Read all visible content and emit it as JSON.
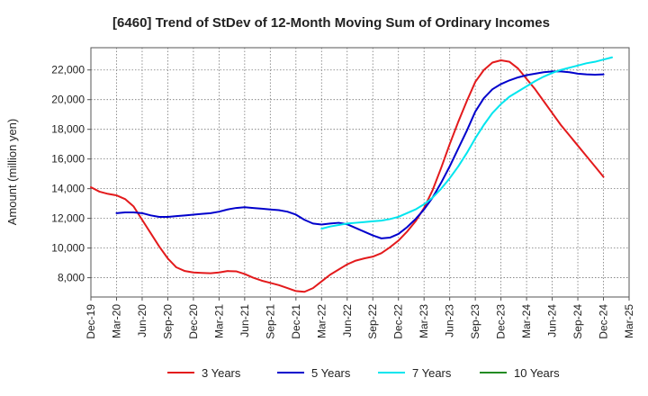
{
  "chart_data": {
    "type": "line",
    "title": "[6460]  Trend of StDev of 12-Month Moving Sum of Ordinary Incomes",
    "xlabel": "",
    "ylabel": "Amount (million yen)",
    "ylim": [
      6700,
      23500
    ],
    "yticks": [
      8000,
      10000,
      12000,
      14000,
      16000,
      18000,
      20000,
      22000
    ],
    "ytick_labels": [
      "8,000",
      "10,000",
      "12,000",
      "14,000",
      "16,000",
      "18,000",
      "20,000",
      "22,000"
    ],
    "x_categories": [
      "Dec-19",
      "Mar-20",
      "Jun-20",
      "Sep-20",
      "Dec-20",
      "Mar-21",
      "Jun-21",
      "Sep-21",
      "Dec-21",
      "Mar-22",
      "Jun-22",
      "Sep-22",
      "Dec-22",
      "Mar-23",
      "Jun-23",
      "Sep-23",
      "Dec-23",
      "Mar-24",
      "Jun-24",
      "Sep-24",
      "Dec-24",
      "Mar-25"
    ],
    "grid": true,
    "legend_position": "bottom",
    "series": [
      {
        "name": "3 Years",
        "color": "#e31a1c",
        "start_index": 0,
        "values": [
          14100,
          13800,
          13650,
          13550,
          13300,
          12800,
          11900,
          11000,
          10100,
          9300,
          8700,
          8450,
          8350,
          8320,
          8300,
          8350,
          8450,
          8430,
          8250,
          8000,
          7800,
          7650,
          7500,
          7300,
          7100,
          7050,
          7300,
          7750,
          8200,
          8550,
          8900,
          9150,
          9300,
          9420,
          9650,
          10050,
          10500,
          11100,
          11800,
          12700,
          13900,
          15400,
          17000,
          18500,
          19900,
          21200,
          22000,
          22500,
          22650,
          22550,
          22100,
          21400,
          20700,
          19900,
          19100,
          18300,
          17600,
          16900,
          16200,
          15500,
          14800
        ]
      },
      {
        "name": "5 Years",
        "color": "#0000cc",
        "start_index": 3,
        "values": [
          12350,
          12400,
          12400,
          12350,
          12200,
          12100,
          12100,
          12150,
          12200,
          12250,
          12300,
          12350,
          12450,
          12600,
          12700,
          12750,
          12700,
          12650,
          12600,
          12550,
          12450,
          12250,
          11900,
          11650,
          11580,
          11650,
          11700,
          11600,
          11350,
          11100,
          10850,
          10650,
          10700,
          10950,
          11400,
          11950,
          12600,
          13400,
          14400,
          15500,
          16700,
          17900,
          19200,
          20100,
          20700,
          21050,
          21300,
          21500,
          21650,
          21750,
          21850,
          21900,
          21900,
          21850,
          21750,
          21700,
          21680,
          21700
        ]
      },
      {
        "name": "7 Years",
        "color": "#00e5ee",
        "start_index": 27,
        "values": [
          11300,
          11450,
          11550,
          11650,
          11700,
          11750,
          11800,
          11850,
          11950,
          12100,
          12350,
          12600,
          12950,
          13400,
          14000,
          14700,
          15500,
          16400,
          17400,
          18300,
          19100,
          19700,
          20200,
          20550,
          20900,
          21250,
          21550,
          21800,
          22000,
          22150,
          22300,
          22450,
          22550,
          22700,
          22850
        ]
      },
      {
        "name": "10 Years",
        "color": "#228b22",
        "start_index": 0,
        "values": []
      }
    ]
  }
}
